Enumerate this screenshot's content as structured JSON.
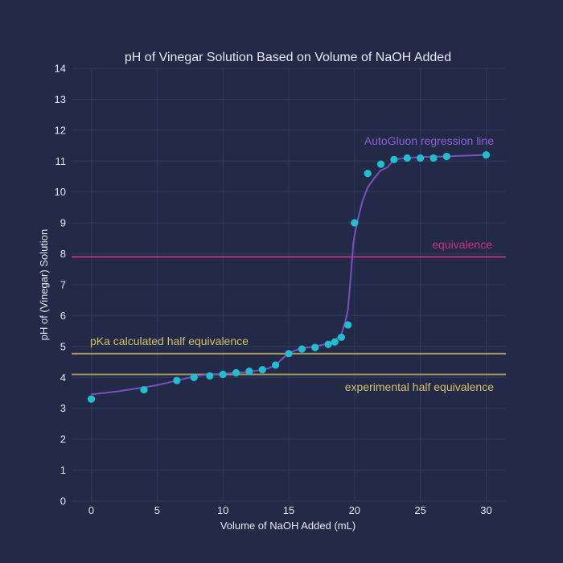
{
  "chart_data": {
    "type": "scatter",
    "title": "pH of Vinegar Solution Based on Volume of NaOH Added",
    "xlabel": "Volume of NaOH Added (mL)",
    "ylabel": "pH of (Vinegar) Solution",
    "xlim": [
      -1.5,
      31.5
    ],
    "ylim": [
      0,
      14
    ],
    "x_ticks": [
      0,
      5,
      10,
      15,
      20,
      25,
      30
    ],
    "y_ticks": [
      0,
      1,
      2,
      3,
      4,
      5,
      6,
      7,
      8,
      9,
      10,
      11,
      12,
      13,
      14
    ],
    "grid": true,
    "series": [
      {
        "kind": "markers",
        "color": "#1fbfcf",
        "x": [
          0,
          4,
          6.5,
          7.8,
          9,
          10,
          11,
          12,
          13,
          14,
          15,
          16,
          17,
          18,
          18.5,
          19,
          19.5,
          20,
          21,
          22,
          23,
          24,
          25,
          26,
          27,
          30
        ],
        "y": [
          3.3,
          3.6,
          3.9,
          4.0,
          4.05,
          4.1,
          4.15,
          4.2,
          4.25,
          4.4,
          4.77,
          4.92,
          4.97,
          5.07,
          5.15,
          5.3,
          5.7,
          9.0,
          10.6,
          10.9,
          11.05,
          11.1,
          11.1,
          11.1,
          11.15,
          11.2
        ]
      },
      {
        "name": "AutoGluon regression line",
        "kind": "line",
        "color": "#7a4fc2",
        "x": [
          0,
          2,
          4,
          5,
          6,
          7,
          8,
          9,
          10,
          11,
          12,
          13,
          13.5,
          14,
          14.5,
          15,
          16,
          17,
          18,
          18.5,
          19,
          19.3,
          19.5,
          19.7,
          19.9,
          20,
          20.3,
          20.6,
          21,
          21.5,
          22,
          22.5,
          23,
          24,
          25,
          26,
          27,
          28,
          30
        ],
        "y": [
          3.45,
          3.55,
          3.68,
          3.75,
          3.85,
          3.95,
          4.05,
          4.1,
          4.12,
          4.15,
          4.18,
          4.25,
          4.3,
          4.4,
          4.6,
          4.8,
          4.95,
          5.0,
          5.1,
          5.2,
          5.4,
          5.8,
          6.2,
          7.2,
          8.3,
          8.6,
          9.2,
          9.7,
          10.15,
          10.45,
          10.7,
          10.8,
          11.05,
          11.1,
          11.13,
          11.14,
          11.15,
          11.17,
          11.2
        ]
      }
    ],
    "hlines": [
      {
        "name": "equivalence",
        "y": 7.9,
        "color": "#b6317a",
        "label_color": "#c8338a"
      },
      {
        "name": "pKa calculated half equivalence",
        "y": 4.77,
        "color": "#a39458",
        "label_color": "#d4c06a"
      },
      {
        "name": "experimental half equivalence",
        "y": 4.1,
        "color": "#a39458",
        "label_color": "#d4c06a"
      }
    ],
    "annotations": [
      {
        "text": "AutoGluon regression line",
        "color": "#8f5fd6"
      },
      {
        "text": "equivalence",
        "color": "#c8338a"
      },
      {
        "text": "pKa calculated half equivalence",
        "color": "#d4c06a"
      },
      {
        "text": "experimental half equivalence",
        "color": "#d4c06a"
      }
    ]
  }
}
